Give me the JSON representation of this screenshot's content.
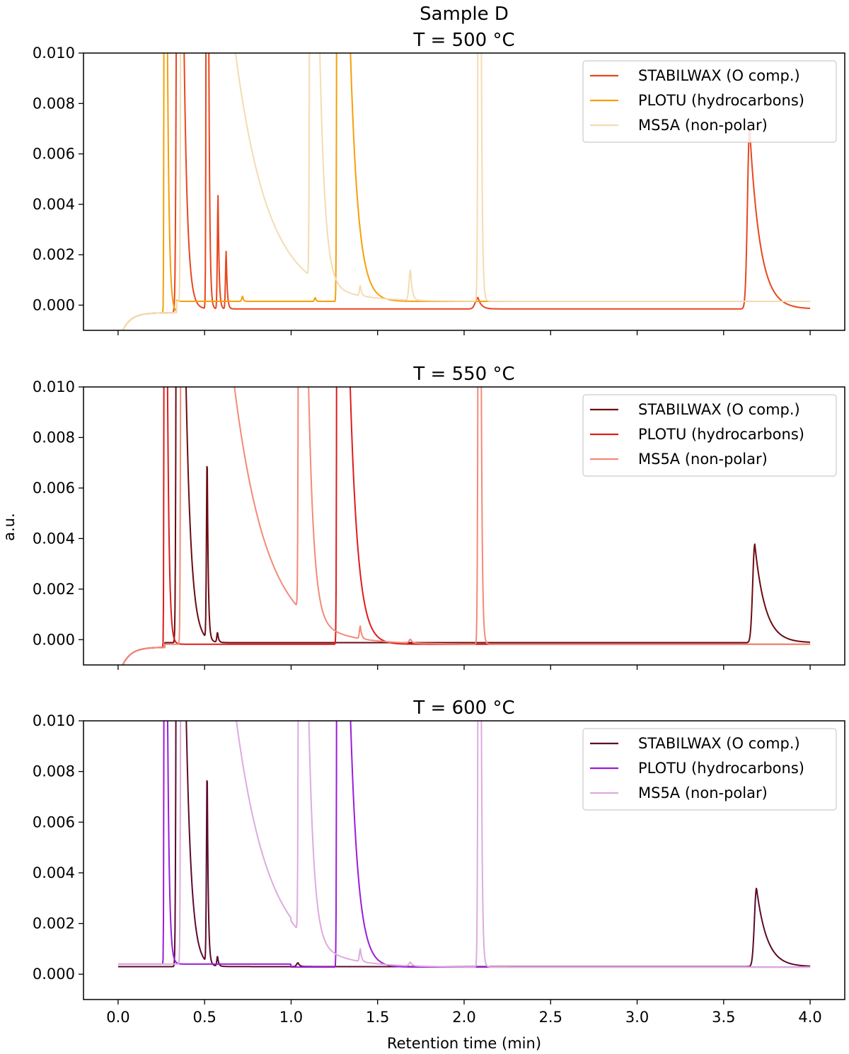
{
  "figure": {
    "suptitle": "Sample D",
    "ylabel": "a.u.",
    "xlabel": "Retention time (min)"
  },
  "chart_data": [
    {
      "type": "line",
      "title": "T = 500 °C",
      "xlim": [
        -0.2,
        4.2
      ],
      "ylim": [
        -0.001,
        0.01
      ],
      "xticks": [
        0.0,
        0.5,
        1.0,
        1.5,
        2.0,
        2.5,
        3.0,
        3.5,
        4.0
      ],
      "xtick_labels": [],
      "yticks": [
        0.0,
        0.002,
        0.004,
        0.006,
        0.008,
        0.01
      ],
      "ytick_labels": [
        "0.000",
        "0.002",
        "0.004",
        "0.006",
        "0.008",
        "0.010"
      ],
      "legend_position": "top-right",
      "series": [
        {
          "name": "STABILWAX (O comp.)",
          "color": "#e8461e",
          "peaks": [
            {
              "x": 0.35,
              "h": 0.05,
              "w": 0.008,
              "tail": 0.02
            },
            {
              "x": 0.515,
              "h": 0.05,
              "w": 0.004,
              "tail": 0.006
            },
            {
              "x": 0.578,
              "h": 0.0045,
              "w": 0.004,
              "tail": 0.006
            },
            {
              "x": 0.625,
              "h": 0.0023,
              "w": 0.004,
              "tail": 0.006
            },
            {
              "x": 2.08,
              "h": 0.00045,
              "w": 0.015,
              "tail": 0.02
            },
            {
              "x": 3.65,
              "h": 0.0072,
              "w": 0.012,
              "tail": 0.06
            }
          ]
        },
        {
          "name": "PLOTU (hydrocarbons)",
          "color": "#f5a00a",
          "peaks": [
            {
              "x": 0.27,
              "h": 0.05,
              "w": 0.003,
              "tail": 0.01
            },
            {
              "x": 0.72,
              "h": 0.0002,
              "w": 0.005,
              "tail": 0.005
            },
            {
              "x": 1.14,
              "h": 0.00015,
              "w": 0.005,
              "tail": 0.005
            },
            {
              "x": 1.27,
              "h": 0.05,
              "w": 0.004,
              "tail": 0.045
            }
          ]
        },
        {
          "name": "MS5A (non-polar)",
          "color": "#f3dcb3",
          "peaks": [
            {
              "x": 0.37,
              "h": 0.05,
              "w": 0.005,
              "tail": 0.19
            },
            {
              "x": 1.115,
              "h": 0.05,
              "w": 0.005,
              "tail": 0.03
            },
            {
              "x": 1.4,
              "h": 0.0004,
              "w": 0.005,
              "tail": 0.008
            },
            {
              "x": 1.69,
              "h": 0.0012,
              "w": 0.008,
              "tail": 0.01
            },
            {
              "x": 2.09,
              "h": 0.05,
              "w": 0.006,
              "tail": 0.006
            }
          ]
        }
      ]
    },
    {
      "type": "line",
      "title": "T = 550 °C",
      "xlim": [
        -0.2,
        4.2
      ],
      "ylim": [
        -0.001,
        0.01
      ],
      "xticks": [
        0.0,
        0.5,
        1.0,
        1.5,
        2.0,
        2.5,
        3.0,
        3.5,
        4.0
      ],
      "xtick_labels": [],
      "yticks": [
        0.0,
        0.002,
        0.004,
        0.006,
        0.008,
        0.01
      ],
      "ytick_labels": [
        "0.000",
        "0.002",
        "0.004",
        "0.006",
        "0.008",
        "0.010"
      ],
      "legend_position": "top-right",
      "series": [
        {
          "name": "STABILWAX (O comp.)",
          "color": "#6b0b12",
          "peaks": [
            {
              "x": 0.345,
              "h": 0.05,
              "w": 0.006,
              "tail": 0.03
            },
            {
              "x": 0.515,
              "h": 0.0074,
              "w": 0.004,
              "tail": 0.006
            },
            {
              "x": 0.575,
              "h": 0.0004,
              "w": 0.004,
              "tail": 0.006
            },
            {
              "x": 3.68,
              "h": 0.0039,
              "w": 0.012,
              "tail": 0.06
            }
          ]
        },
        {
          "name": "PLOTU (hydrocarbons)",
          "color": "#dd1c1c",
          "peaks": [
            {
              "x": 0.27,
              "h": 0.05,
              "w": 0.003,
              "tail": 0.01
            },
            {
              "x": 1.27,
              "h": 0.05,
              "w": 0.004,
              "tail": 0.045
            }
          ]
        },
        {
          "name": "MS5A (non-polar)",
          "color": "#f28a78",
          "peaks": [
            {
              "x": 0.37,
              "h": 0.05,
              "w": 0.005,
              "tail": 0.19
            },
            {
              "x": 1.05,
              "h": 0.05,
              "w": 0.005,
              "tail": 0.03
            },
            {
              "x": 1.4,
              "h": 0.0005,
              "w": 0.005,
              "tail": 0.008
            },
            {
              "x": 1.69,
              "h": 0.00015,
              "w": 0.008,
              "tail": 0.01
            },
            {
              "x": 2.09,
              "h": 0.05,
              "w": 0.006,
              "tail": 0.006
            }
          ]
        }
      ]
    },
    {
      "type": "line",
      "title": "T = 600 °C",
      "xlim": [
        -0.2,
        4.2
      ],
      "ylim": [
        -0.001,
        0.01
      ],
      "xticks": [
        0.0,
        0.5,
        1.0,
        1.5,
        2.0,
        2.5,
        3.0,
        3.5,
        4.0
      ],
      "xtick_labels": [
        "0.0",
        "0.5",
        "1.0",
        "1.5",
        "2.0",
        "2.5",
        "3.0",
        "3.5",
        "4.0"
      ],
      "yticks": [
        0.0,
        0.002,
        0.004,
        0.006,
        0.008,
        0.01
      ],
      "ytick_labels": [
        "0.000",
        "0.002",
        "0.004",
        "0.006",
        "0.008",
        "0.010"
      ],
      "legend_position": "top-right",
      "series": [
        {
          "name": "STABILWAX (O comp.)",
          "color": "#5c0a2d",
          "peaks": [
            {
              "x": 0.345,
              "h": 0.05,
              "w": 0.006,
              "tail": 0.03
            },
            {
              "x": 0.515,
              "h": 0.0078,
              "w": 0.004,
              "tail": 0.006
            },
            {
              "x": 0.575,
              "h": 0.0004,
              "w": 0.004,
              "tail": 0.006
            },
            {
              "x": 1.04,
              "h": 0.00015,
              "w": 0.008,
              "tail": 0.01
            },
            {
              "x": 3.69,
              "h": 0.0031,
              "w": 0.012,
              "tail": 0.06
            }
          ]
        },
        {
          "name": "PLOTU (hydrocarbons)",
          "color": "#9b1cdb",
          "peaks": [
            {
              "x": 0.27,
              "h": 0.05,
              "w": 0.003,
              "tail": 0.01
            },
            {
              "x": 1.27,
              "h": 0.05,
              "w": 0.004,
              "tail": 0.045
            }
          ]
        },
        {
          "name": "MS5A (non-polar)",
          "color": "#deaadf",
          "peaks": [
            {
              "x": 0.37,
              "h": 0.05,
              "w": 0.005,
              "tail": 0.19
            },
            {
              "x": 1.05,
              "h": 0.05,
              "w": 0.005,
              "tail": 0.03
            },
            {
              "x": 1.4,
              "h": 0.0005,
              "w": 0.005,
              "tail": 0.008
            },
            {
              "x": 1.69,
              "h": 0.00015,
              "w": 0.008,
              "tail": 0.01
            },
            {
              "x": 2.09,
              "h": 0.05,
              "w": 0.006,
              "tail": 0.006
            }
          ]
        }
      ]
    }
  ]
}
